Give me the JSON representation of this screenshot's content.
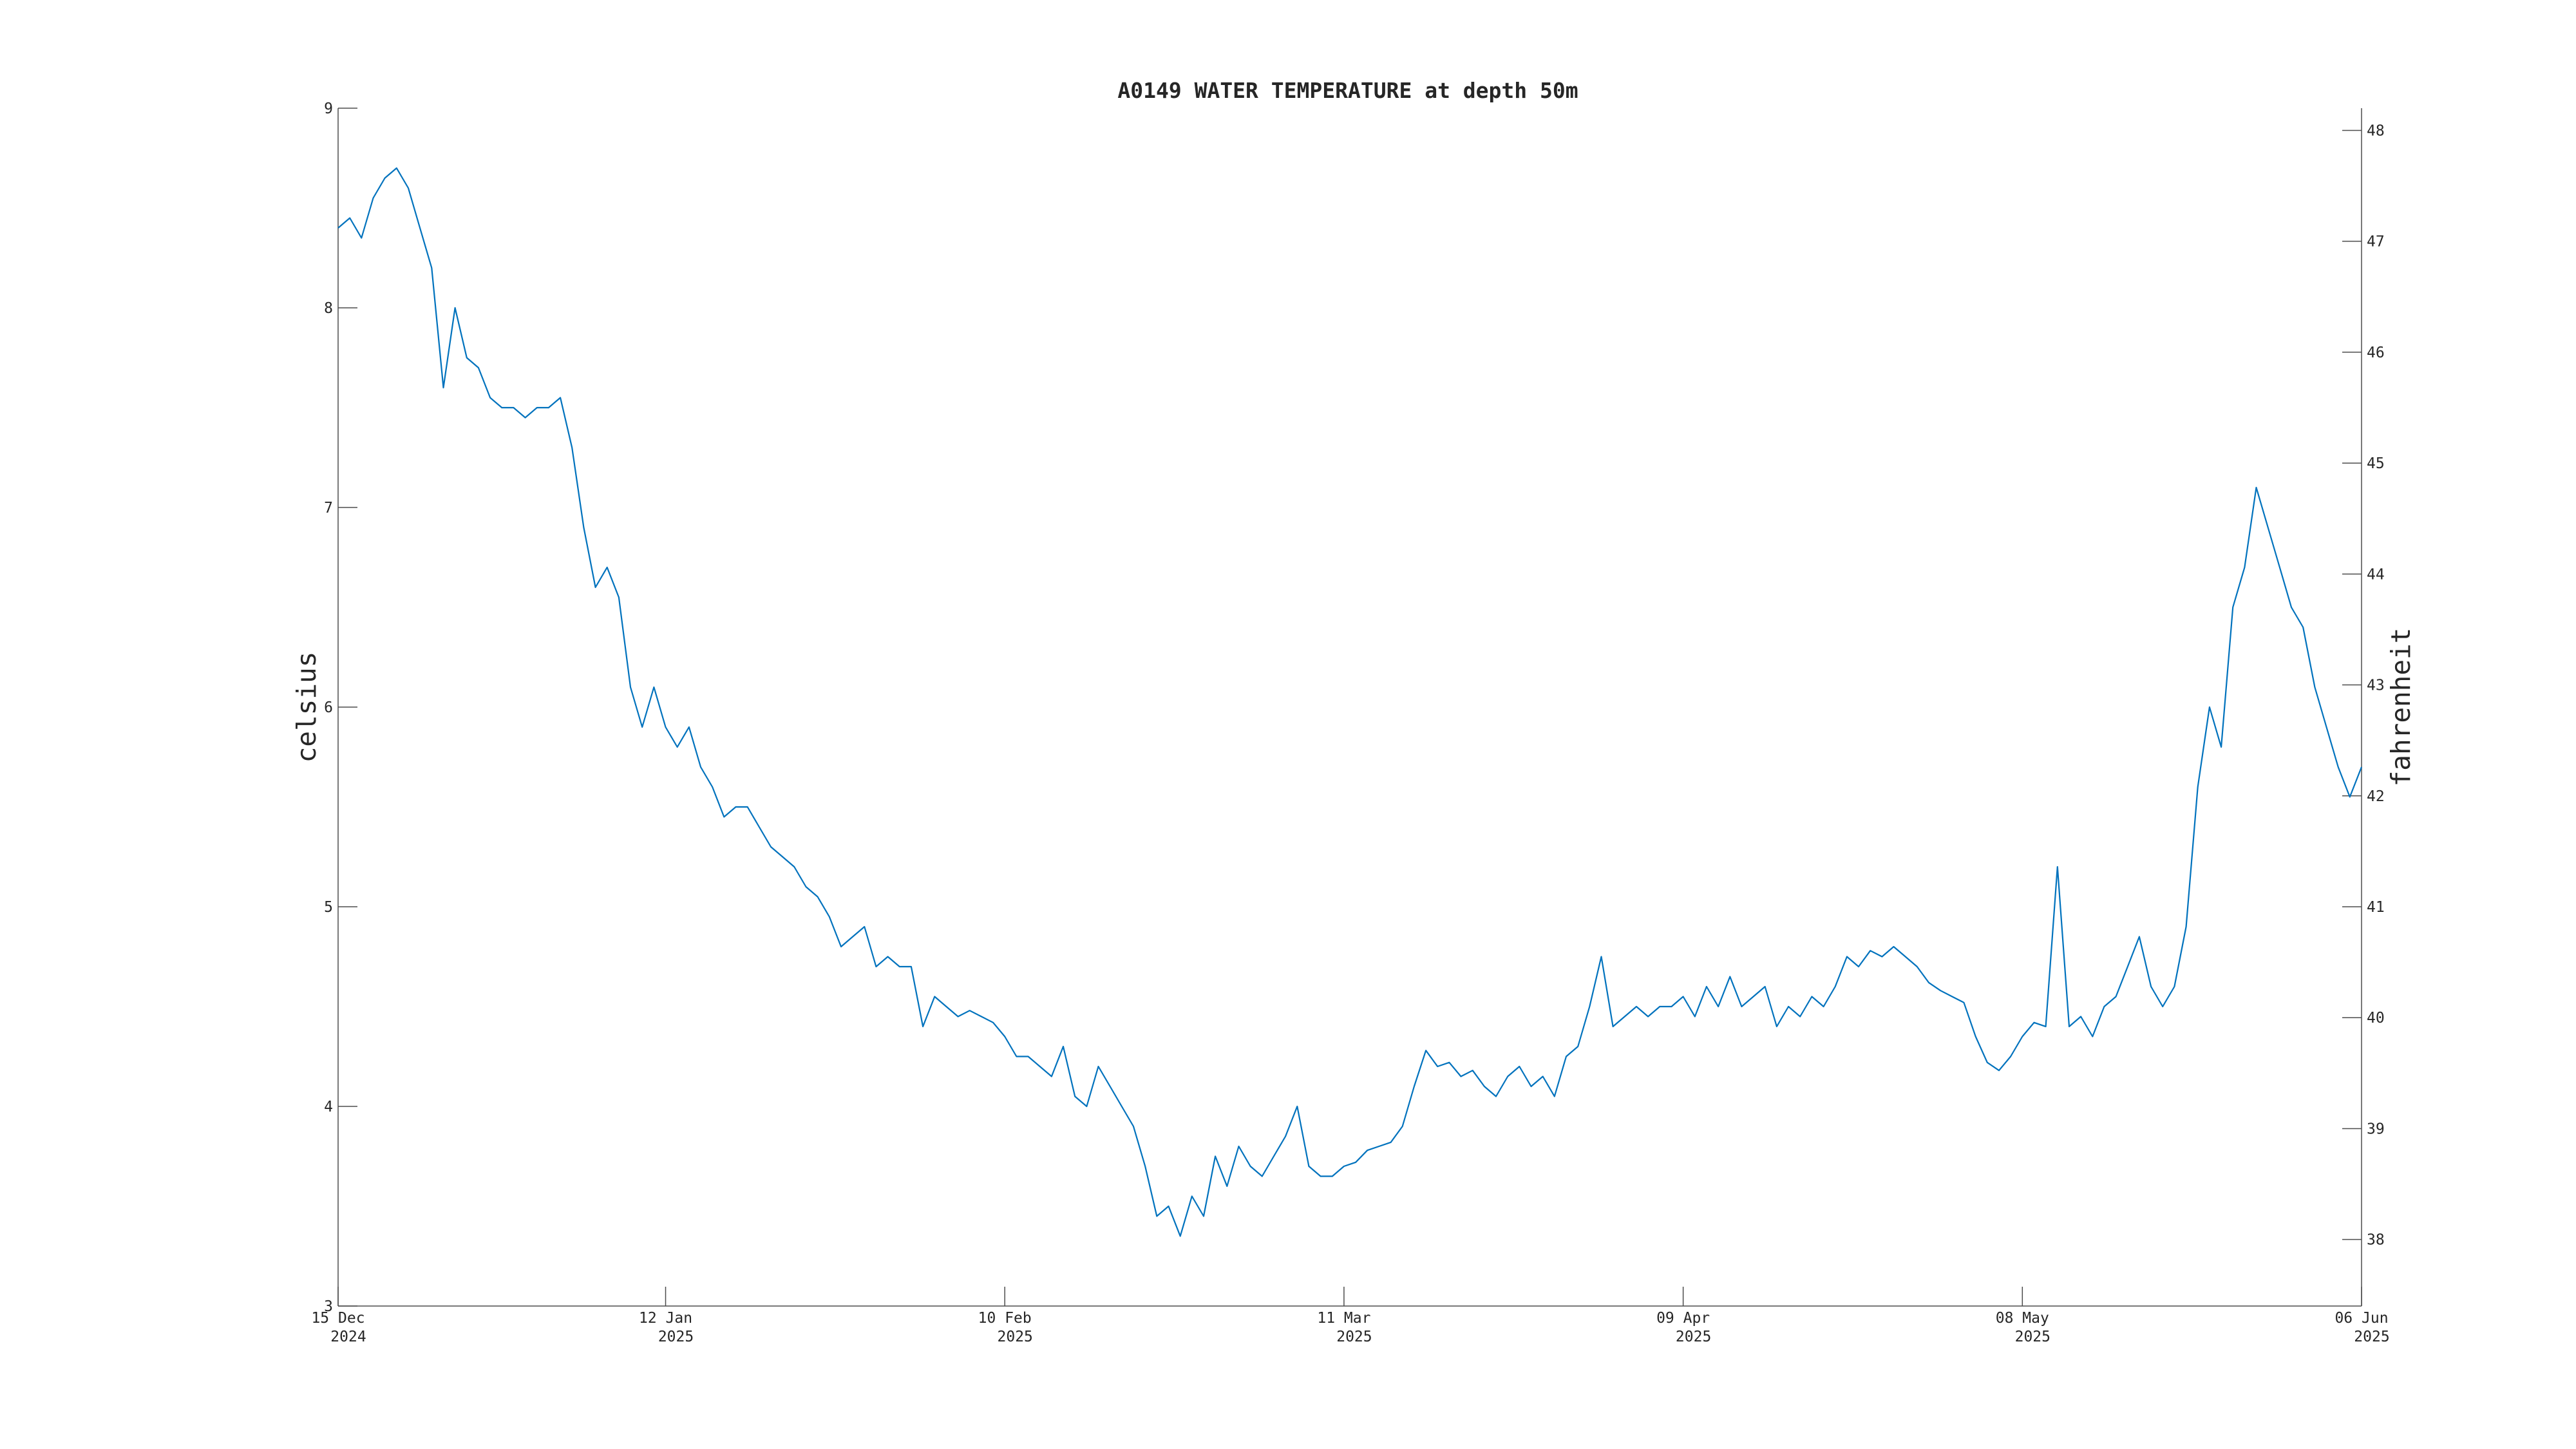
{
  "chart_data": {
    "type": "line",
    "title": "A0149 WATER TEMPERATURE at depth 50m",
    "ylabel": "celsius",
    "y2label": "fahrenheit",
    "x": [
      "2024-12-15",
      "2024-12-16",
      "2024-12-17",
      "2024-12-18",
      "2024-12-19",
      "2024-12-20",
      "2024-12-21",
      "2024-12-22",
      "2024-12-23",
      "2024-12-24",
      "2024-12-25",
      "2024-12-26",
      "2024-12-27",
      "2024-12-28",
      "2024-12-29",
      "2024-12-30",
      "2024-12-31",
      "2025-01-01",
      "2025-01-02",
      "2025-01-03",
      "2025-01-04",
      "2025-01-05",
      "2025-01-06",
      "2025-01-07",
      "2025-01-08",
      "2025-01-09",
      "2025-01-10",
      "2025-01-11",
      "2025-01-12",
      "2025-01-13",
      "2025-01-14",
      "2025-01-15",
      "2025-01-16",
      "2025-01-17",
      "2025-01-18",
      "2025-01-19",
      "2025-01-20",
      "2025-01-21",
      "2025-01-22",
      "2025-01-23",
      "2025-01-24",
      "2025-01-25",
      "2025-01-26",
      "2025-01-27",
      "2025-01-28",
      "2025-01-29",
      "2025-01-30",
      "2025-01-31",
      "2025-02-01",
      "2025-02-02",
      "2025-02-03",
      "2025-02-04",
      "2025-02-05",
      "2025-02-06",
      "2025-02-07",
      "2025-02-08",
      "2025-02-09",
      "2025-02-10",
      "2025-02-11",
      "2025-02-12",
      "2025-02-13",
      "2025-02-14",
      "2025-02-15",
      "2025-02-16",
      "2025-02-17",
      "2025-02-18",
      "2025-02-19",
      "2025-02-20",
      "2025-02-21",
      "2025-02-22",
      "2025-02-23",
      "2025-02-24",
      "2025-02-25",
      "2025-02-26",
      "2025-02-27",
      "2025-02-28",
      "2025-03-01",
      "2025-03-02",
      "2025-03-03",
      "2025-03-04",
      "2025-03-05",
      "2025-03-06",
      "2025-03-07",
      "2025-03-08",
      "2025-03-09",
      "2025-03-10",
      "2025-03-11",
      "2025-03-12",
      "2025-03-13",
      "2025-03-14",
      "2025-03-15",
      "2025-03-16",
      "2025-03-17",
      "2025-03-18",
      "2025-03-19",
      "2025-03-20",
      "2025-03-21",
      "2025-03-22",
      "2025-03-23",
      "2025-03-24",
      "2025-03-25",
      "2025-03-26",
      "2025-03-27",
      "2025-03-28",
      "2025-03-29",
      "2025-03-30",
      "2025-03-31",
      "2025-04-01",
      "2025-04-02",
      "2025-04-03",
      "2025-04-04",
      "2025-04-05",
      "2025-04-06",
      "2025-04-07",
      "2025-04-08",
      "2025-04-09",
      "2025-04-10",
      "2025-04-11",
      "2025-04-12",
      "2025-04-13",
      "2025-04-14",
      "2025-04-15",
      "2025-04-16",
      "2025-04-17",
      "2025-04-18",
      "2025-04-19",
      "2025-04-20",
      "2025-04-21",
      "2025-04-22",
      "2025-04-23",
      "2025-04-24",
      "2025-04-25",
      "2025-04-26",
      "2025-04-27",
      "2025-04-28",
      "2025-04-29",
      "2025-04-30",
      "2025-05-01",
      "2025-05-02",
      "2025-05-03",
      "2025-05-04",
      "2025-05-05",
      "2025-05-06",
      "2025-05-07",
      "2025-05-08",
      "2025-05-09",
      "2025-05-10",
      "2025-05-11",
      "2025-05-12",
      "2025-05-13",
      "2025-05-14",
      "2025-05-15",
      "2025-05-16",
      "2025-05-17",
      "2025-05-18",
      "2025-05-19",
      "2025-05-20",
      "2025-05-21",
      "2025-05-22",
      "2025-05-23",
      "2025-05-24",
      "2025-05-25",
      "2025-05-26",
      "2025-05-27",
      "2025-05-28",
      "2025-05-29",
      "2025-05-30",
      "2025-05-31",
      "2025-06-01",
      "2025-06-02",
      "2025-06-03",
      "2025-06-04",
      "2025-06-05",
      "2025-06-06"
    ],
    "series": [
      {
        "color": "#0072bd",
        "values": [
          8.4,
          8.45,
          8.35,
          8.55,
          8.65,
          8.7,
          8.6,
          8.4,
          8.2,
          7.6,
          8.0,
          7.75,
          7.7,
          7.55,
          7.5,
          7.5,
          7.45,
          7.5,
          7.5,
          7.55,
          7.3,
          6.9,
          6.6,
          6.7,
          6.55,
          6.1,
          5.9,
          6.1,
          5.9,
          5.8,
          5.9,
          5.7,
          5.6,
          5.45,
          5.5,
          5.5,
          5.4,
          5.3,
          5.25,
          5.2,
          5.1,
          5.05,
          4.95,
          4.8,
          4.85,
          4.9,
          4.7,
          4.75,
          4.7,
          4.7,
          4.4,
          4.55,
          4.5,
          4.45,
          4.48,
          4.45,
          4.42,
          4.35,
          4.25,
          4.25,
          4.2,
          4.15,
          4.3,
          4.05,
          4.0,
          4.2,
          4.1,
          4.0,
          3.9,
          3.7,
          3.45,
          3.5,
          3.35,
          3.55,
          3.45,
          3.75,
          3.6,
          3.8,
          3.7,
          3.65,
          3.75,
          3.85,
          4.0,
          3.7,
          3.65,
          3.65,
          3.7,
          3.72,
          3.78,
          3.8,
          3.82,
          3.9,
          4.1,
          4.28,
          4.2,
          4.22,
          4.15,
          4.18,
          4.1,
          4.05,
          4.15,
          4.2,
          4.1,
          4.15,
          4.05,
          4.25,
          4.3,
          4.5,
          4.75,
          4.4,
          4.45,
          4.5,
          4.45,
          4.5,
          4.5,
          4.55,
          4.45,
          4.6,
          4.5,
          4.65,
          4.5,
          4.55,
          4.6,
          4.4,
          4.5,
          4.45,
          4.55,
          4.5,
          4.6,
          4.75,
          4.7,
          4.78,
          4.75,
          4.8,
          4.75,
          4.7,
          4.62,
          4.58,
          4.55,
          4.52,
          4.35,
          4.22,
          4.18,
          4.25,
          4.35,
          4.42,
          4.4,
          5.2,
          4.4,
          4.45,
          4.35,
          4.5,
          4.55,
          4.7,
          4.85,
          4.6,
          4.5,
          4.6,
          4.9,
          5.6,
          6.0,
          5.8,
          6.5,
          6.7,
          7.1,
          6.9,
          6.7,
          6.5,
          6.4,
          6.1,
          5.9,
          5.7,
          5.55,
          5.7
        ]
      }
    ],
    "xlim": [
      "2024-12-15",
      "2025-06-06"
    ],
    "xticks": [
      {
        "value": "2024-12-15",
        "label": [
          "15 Dec",
          "2024"
        ]
      },
      {
        "value": "2025-01-12",
        "label": [
          "12 Jan",
          "2025"
        ]
      },
      {
        "value": "2025-02-10",
        "label": [
          "10 Feb",
          "2025"
        ]
      },
      {
        "value": "2025-03-11",
        "label": [
          "11 Mar",
          "2025"
        ]
      },
      {
        "value": "2025-04-09",
        "label": [
          "09 Apr",
          "2025"
        ]
      },
      {
        "value": "2025-05-08",
        "label": [
          "08 May",
          "2025"
        ]
      },
      {
        "value": "2025-06-06",
        "label": [
          "06 Jun",
          "2025"
        ]
      }
    ],
    "ylim": [
      3,
      9
    ],
    "yticks": [
      3,
      4,
      5,
      6,
      7,
      8,
      9
    ],
    "y2lim": [
      37.4,
      48.2
    ],
    "y2ticks": [
      38,
      39,
      40,
      41,
      42,
      43,
      44,
      45,
      46,
      47,
      48
    ]
  }
}
